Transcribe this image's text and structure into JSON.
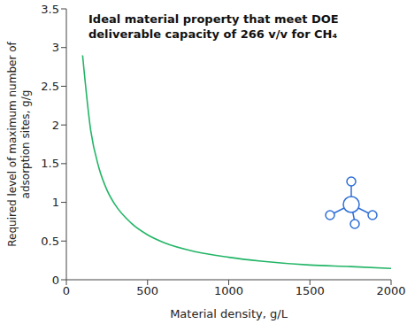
{
  "chart_data": {
    "type": "line",
    "title": "Ideal material property that meet DOE deliverable capacity of 266 v/v for CH₄",
    "x_label": "Material density, g/L",
    "y_label": "Required level of maximum number of adsorption sites, g/g",
    "x": [
      100,
      150,
      200,
      250,
      300,
      400,
      500,
      600,
      800,
      1000,
      1200,
      1500,
      1750,
      2000
    ],
    "values": [
      2.9,
      1.93,
      1.45,
      1.16,
      0.97,
      0.73,
      0.58,
      0.48,
      0.36,
      0.29,
      0.24,
      0.19,
      0.17,
      0.145
    ],
    "color": "#22b566",
    "xlim": [
      0,
      2000
    ],
    "ylim": [
      0,
      3.5
    ],
    "xticks": [
      0,
      500,
      1000,
      1500,
      2000
    ],
    "yticks": [
      0,
      0.5,
      1,
      1.5,
      2,
      2.5,
      3,
      3.5
    ],
    "grid": false
  }
}
